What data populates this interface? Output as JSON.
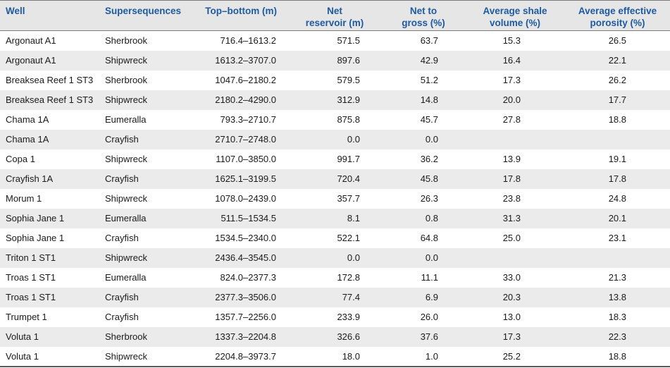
{
  "columns": [
    "Well",
    "Supersequences",
    "Top–bottom (m)",
    "Net reservoir (m)",
    "Net to gross (%)",
    "Average shale volume (%)",
    "Average effective porosity (%)"
  ],
  "header_lines": [
    [
      "Well"
    ],
    [
      "Supersequences"
    ],
    [
      "Top–bottom (m)"
    ],
    [
      "Net",
      "reservoir (m)"
    ],
    [
      "Net to",
      "gross (%)"
    ],
    [
      "Average shale",
      "volume (%)"
    ],
    [
      "Average effective",
      "porosity (%)"
    ]
  ],
  "rows": [
    [
      "Argonaut A1",
      "Sherbrook",
      "716.4–1613.2",
      "571.5",
      "63.7",
      "15.3",
      "26.5"
    ],
    [
      "Argonaut A1",
      "Shipwreck",
      "1613.2–3707.0",
      "897.6",
      "42.9",
      "16.4",
      "22.1"
    ],
    [
      "Breaksea Reef 1 ST3",
      "Sherbrook",
      "1047.6–2180.2",
      "579.5",
      "51.2",
      "17.3",
      "26.2"
    ],
    [
      "Breaksea Reef 1 ST3",
      "Shipwreck",
      "2180.2–4290.0",
      "312.9",
      "14.8",
      "20.0",
      "17.7"
    ],
    [
      "Chama 1A",
      "Eumeralla",
      "793.3–2710.7",
      "875.8",
      "45.7",
      "27.8",
      "18.8"
    ],
    [
      "Chama 1A",
      "Crayfish",
      "2710.7–2748.0",
      "0.0",
      "0.0",
      "",
      ""
    ],
    [
      "Copa 1",
      "Shipwreck",
      "1107.0–3850.0",
      "991.7",
      "36.2",
      "13.9",
      "19.1"
    ],
    [
      "Crayfish 1A",
      "Crayfish",
      "1625.1–3199.5",
      "720.4",
      "45.8",
      "17.8",
      "17.8"
    ],
    [
      "Morum 1",
      "Shipwreck",
      "1078.0–2439.0",
      "357.7",
      "26.3",
      "23.8",
      "24.8"
    ],
    [
      "Sophia Jane 1",
      "Eumeralla",
      "511.5–1534.5",
      "8.1",
      "0.8",
      "31.3",
      "20.1"
    ],
    [
      "Sophia Jane 1",
      "Crayfish",
      "1534.5–2340.0",
      "522.1",
      "64.8",
      "25.0",
      "23.1"
    ],
    [
      "Triton 1 ST1",
      "Shipwreck",
      "2436.4–3545.0",
      "0.0",
      "0.0",
      "",
      ""
    ],
    [
      "Troas 1 ST1",
      "Eumeralla",
      "824.0–2377.3",
      "172.8",
      "11.1",
      "33.0",
      "21.3"
    ],
    [
      "Troas 1 ST1",
      "Crayfish",
      "2377.3–3506.0",
      "77.4",
      "6.9",
      "20.3",
      "13.8"
    ],
    [
      "Trumpet 1",
      "Crayfish",
      "1357.7–2256.0",
      "233.9",
      "26.0",
      "13.0",
      "18.3"
    ],
    [
      "Voluta 1",
      "Sherbrook",
      "1337.3–2204.8",
      "326.6",
      "37.6",
      "17.3",
      "22.3"
    ],
    [
      "Voluta 1",
      "Shipwreck",
      "2204.8–3973.7",
      "18.0",
      "1.0",
      "25.2",
      "18.8"
    ]
  ]
}
